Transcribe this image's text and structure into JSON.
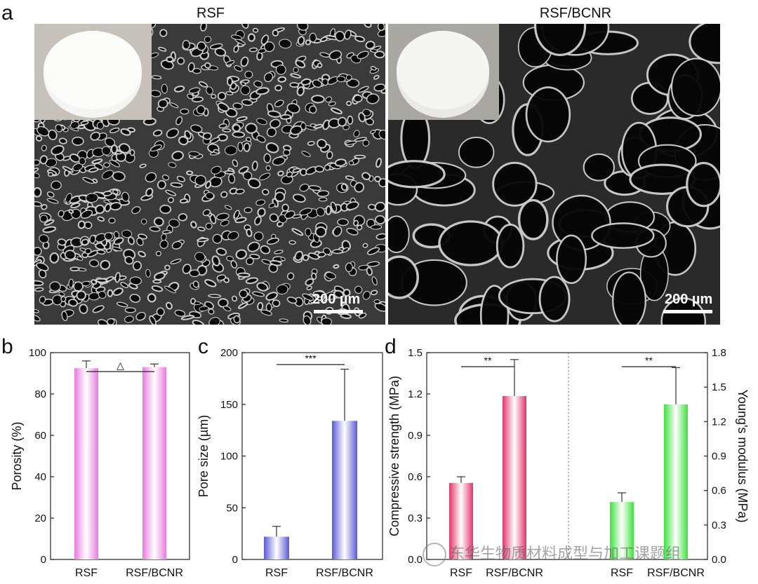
{
  "panel_a": {
    "letter": "a",
    "left_title": "RSF",
    "right_title": "RSF/BCNR",
    "left_scale": "200 µm",
    "right_scale": "200 µm"
  },
  "watermark": "东华生物质材料成型与加工课题组",
  "colors": {
    "porosity_bar": "#e87be0",
    "pore_bar": "#5a5ad6",
    "compressive_bar": "#e0346a",
    "young_bar": "#3fe03f"
  },
  "chart_data": [
    {
      "panel": "b",
      "type": "bar",
      "categories": [
        "RSF",
        "RSF/BCNR"
      ],
      "values": [
        92.5,
        93
      ],
      "errors": [
        3.5,
        1.5
      ],
      "ylabel": "Porosity (%)",
      "ylim": [
        0,
        100
      ],
      "yticks": [
        0,
        20,
        40,
        60,
        80,
        100
      ],
      "significance": "△"
    },
    {
      "panel": "c",
      "type": "bar",
      "categories": [
        "RSF",
        "RSF/BCNR"
      ],
      "values": [
        22,
        134
      ],
      "errors": [
        10,
        50
      ],
      "ylabel": "Pore size (µm)",
      "ylim": [
        0,
        200
      ],
      "yticks": [
        0,
        50,
        100,
        150,
        200
      ],
      "significance": "***"
    },
    {
      "panel": "d",
      "type": "bar",
      "series": [
        {
          "axis": "left",
          "categories": [
            "RSF",
            "RSF/BCNR"
          ],
          "values": [
            0.555,
            1.185
          ],
          "errors": [
            0.045,
            0.265
          ],
          "significance": "**"
        },
        {
          "axis": "right",
          "categories": [
            "RSF",
            "RSF/BCNR"
          ],
          "values": [
            0.5,
            1.35
          ],
          "errors": [
            0.08,
            0.32
          ],
          "significance": "**"
        }
      ],
      "ylabel": "Compressive strength (MPa)",
      "ylabel_right": "Young's modulus (MPa)",
      "ylim": [
        0,
        1.5
      ],
      "ylim_right": [
        0,
        1.8
      ],
      "yticks": [
        "0.0",
        "0.3",
        "0.6",
        "0.9",
        "1.2",
        "1.5"
      ],
      "yticks_right": [
        "0.0",
        "0.3",
        "0.6",
        "0.9",
        "1.2",
        "1.5",
        "1.8"
      ]
    }
  ]
}
